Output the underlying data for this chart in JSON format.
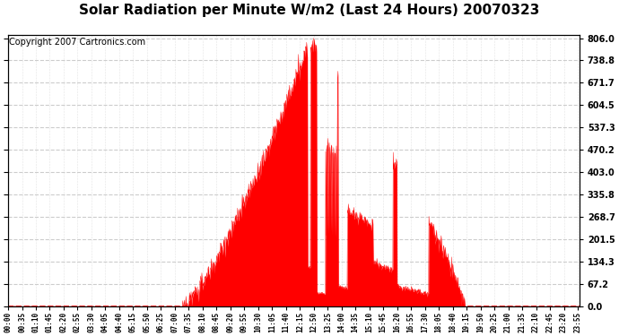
{
  "title": "Solar Radiation per Minute W/m2 (Last 24 Hours) 20070323",
  "copyright": "Copyright 2007 Cartronics.com",
  "ymin": 0.0,
  "ymax": 806.0,
  "yticks": [
    0.0,
    67.2,
    134.3,
    201.5,
    268.7,
    335.8,
    403.0,
    470.2,
    537.3,
    604.5,
    671.7,
    738.8,
    806.0
  ],
  "fill_color": "red",
  "line_color": "red",
  "background_color": "white",
  "plot_bg_color": "white",
  "grid_color": "#cccccc",
  "title_fontsize": 11,
  "copyright_fontsize": 7,
  "num_points": 1440,
  "tick_interval": 35
}
